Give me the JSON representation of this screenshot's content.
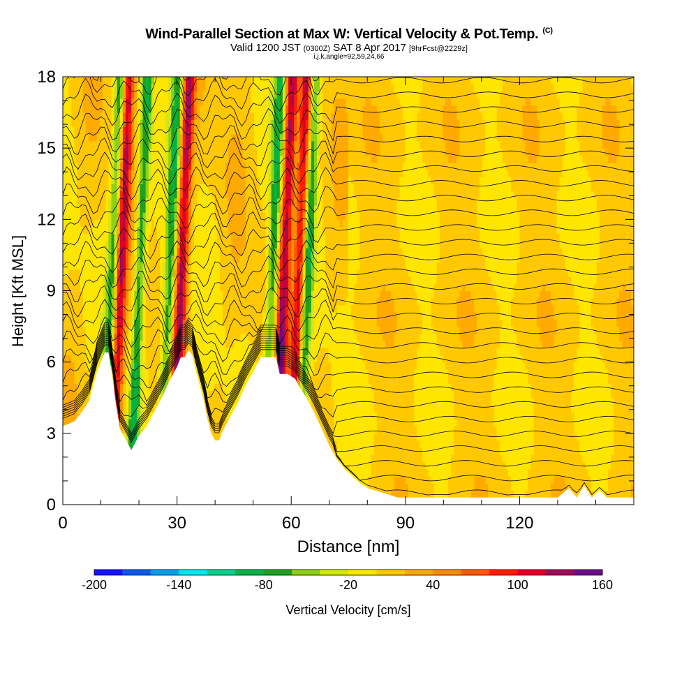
{
  "header": {
    "title": "Wind-Parallel Section at Max W: Vertical Velocity & Pot.Temp.",
    "copyright": "(C)",
    "valid_prefix": "Valid 1200 JST",
    "valid_utc": "(0300Z)",
    "valid_date": "SAT 8 Apr 2017",
    "forecast": "[9hrFcst@2229z]",
    "grid_info": "i,j,k,angle=92,59,24,66"
  },
  "chart_data": {
    "type": "heatmap",
    "xlabel": "Distance [nm]",
    "ylabel": "Height [Kft MSL]",
    "xlim": [
      0,
      150
    ],
    "ylim": [
      0,
      18
    ],
    "x_ticks": [
      0,
      30,
      60,
      90,
      120
    ],
    "y_ticks": [
      0,
      3,
      6,
      9,
      12,
      15,
      18
    ],
    "colorbar": {
      "label": "Vertical Velocity [cm/s]",
      "range": [
        -200,
        160
      ],
      "step": 20,
      "tick_values": [
        -200,
        -140,
        -80,
        -20,
        40,
        100,
        160
      ],
      "colors": [
        "#1414ff",
        "#0a5af0",
        "#00a0f0",
        "#00e6f0",
        "#00d28c",
        "#00b446",
        "#1ea01e",
        "#8cd214",
        "#d2e61e",
        "#ffe600",
        "#ffc800",
        "#ffaa00",
        "#ff8c00",
        "#ff5a00",
        "#ff1e00",
        "#dc0028",
        "#a00a5a",
        "#6e0a8c"
      ]
    },
    "updraft_cores_x_nm": [
      15,
      31,
      58,
      62
    ],
    "downdraft_cores_x_nm": [
      13,
      20,
      28,
      55,
      64
    ],
    "terrain_peaks_x_nm": [
      12,
      33,
      56
    ],
    "isentropes": "potential temperature contours, solid black lines"
  }
}
